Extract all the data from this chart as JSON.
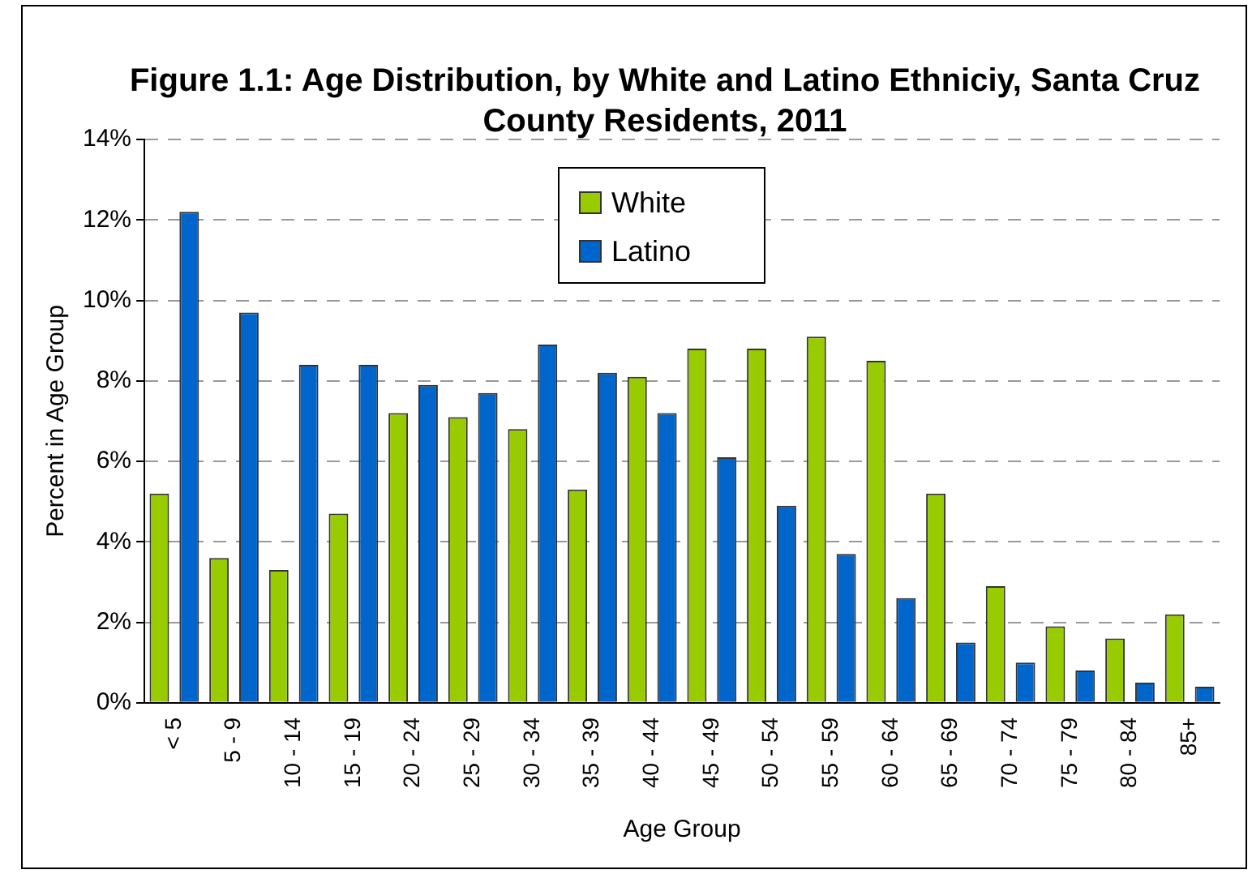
{
  "chart_data": {
    "type": "bar",
    "title": "Figure 1.1: Age Distribution, by White and Latino Ethniciy, Santa Cruz County Residents, 2011",
    "xlabel": "Age Group",
    "ylabel": "Percent in Age Group",
    "categories": [
      "< 5",
      "5 - 9",
      "10 - 14",
      "15 - 19",
      "20 - 24",
      "25 - 29",
      "30 - 34",
      "35 - 39",
      "40 - 44",
      "45 - 49",
      "50 - 54",
      "55 - 59",
      "60 - 64",
      "65 - 69",
      "70 - 74",
      "75 - 79",
      "80 - 84",
      "85+"
    ],
    "series": [
      {
        "name": "White",
        "color": "#99cc00",
        "values": [
          5.2,
          3.6,
          3.3,
          4.7,
          7.2,
          7.1,
          6.8,
          5.3,
          8.1,
          8.8,
          8.8,
          9.1,
          8.5,
          5.2,
          2.9,
          1.9,
          1.6,
          2.2
        ]
      },
      {
        "name": "Latino",
        "color": "#0066cc",
        "values": [
          12.2,
          9.7,
          8.4,
          8.4,
          7.9,
          7.7,
          8.9,
          8.2,
          7.2,
          6.1,
          4.9,
          3.7,
          2.6,
          1.5,
          1.0,
          0.8,
          0.5,
          0.4
        ]
      }
    ],
    "ylim": [
      0,
      14
    ],
    "yticks": [
      {
        "value": 0,
        "label": "0%"
      },
      {
        "value": 2,
        "label": "2%"
      },
      {
        "value": 4,
        "label": "4%"
      },
      {
        "value": 6,
        "label": "6%"
      },
      {
        "value": 8,
        "label": "8%"
      },
      {
        "value": 10,
        "label": "10%"
      },
      {
        "value": 12,
        "label": "12%"
      },
      {
        "value": 14,
        "label": "14%"
      }
    ],
    "grid": "y",
    "legend": "top"
  }
}
